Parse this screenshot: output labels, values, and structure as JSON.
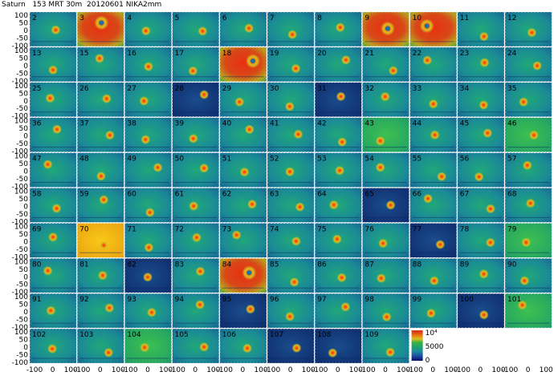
{
  "title_parts": {
    "source": "Saturn",
    "scan": "153 MRT 30m",
    "date": "20120601",
    "instrument": "NIKA2mm"
  },
  "chart_data": {
    "type": "heatmap",
    "title": "Saturn   153 MRT 30m   20120601 NIKA2mm",
    "grid_rows": 10,
    "grid_cols": 11,
    "panel_numbers": [
      2,
      3,
      4,
      5,
      6,
      7,
      8,
      9,
      10,
      11,
      12,
      13,
      15,
      16,
      17,
      18,
      19,
      20,
      21,
      22,
      23,
      24,
      25,
      26,
      27,
      28,
      29,
      30,
      31,
      32,
      33,
      34,
      35,
      36,
      37,
      38,
      39,
      40,
      41,
      42,
      43,
      44,
      45,
      46,
      47,
      48,
      49,
      50,
      51,
      52,
      53,
      54,
      55,
      56,
      57,
      58,
      59,
      60,
      61,
      62,
      63,
      64,
      65,
      66,
      67,
      68,
      69,
      70,
      71,
      72,
      73,
      74,
      75,
      76,
      77,
      78,
      79,
      80,
      81,
      82,
      83,
      84,
      85,
      86,
      87,
      88,
      89,
      90,
      91,
      92,
      93,
      94,
      95,
      96,
      97,
      98,
      99,
      100,
      101,
      102,
      103,
      104,
      105,
      106,
      107,
      108,
      109
    ],
    "y_ticks": [
      "100",
      "50",
      "0",
      "-50",
      "-100"
    ],
    "x_ticks": [
      "-100",
      "0",
      "100"
    ],
    "colorbar": {
      "ticks": [
        "10⁴",
        "5000",
        "0"
      ],
      "colors": [
        "#0a0a6e",
        "#1a4aa0",
        "#1e8aa0",
        "#20a070",
        "#3ab040",
        "#d8c020",
        "#e87010",
        "#d82010"
      ]
    },
    "panel_styles": {
      "3": "hot",
      "9": "hot",
      "10": "hot",
      "18": "hot",
      "84": "hot",
      "70": "yellow",
      "43": "green",
      "46": "green",
      "79": "green",
      "101": "green",
      "104": "green",
      "31": "dark",
      "65": "dark",
      "82": "dark",
      "95": "dark",
      "108": "dark",
      "28": "dark",
      "77": "dark",
      "100": "dark",
      "107": "dark"
    }
  }
}
